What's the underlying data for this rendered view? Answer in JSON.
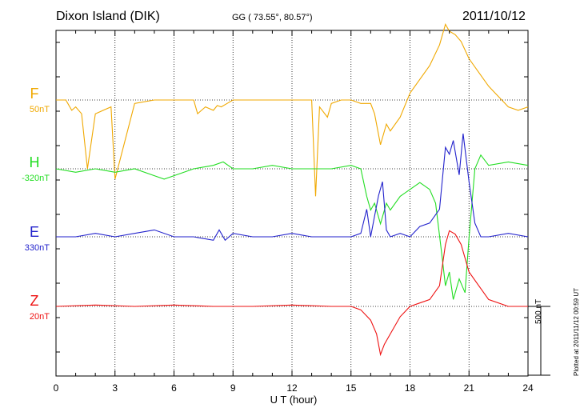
{
  "header": {
    "station": "Dixon Island (DIK)",
    "coords": "GG ( 73.55°,  80.57°)",
    "date": "2011/10/12"
  },
  "footer": {
    "plotted_note": "Plotted at 2011/11/12 00:59 UT"
  },
  "chart_data": {
    "type": "line",
    "title": "",
    "xlabel": "U T (hour)",
    "ylabel": "",
    "xlim": [
      0,
      24
    ],
    "x_ticks": [
      "0",
      "3",
      "6",
      "9",
      "12",
      "15",
      "18",
      "21",
      "24"
    ],
    "grid": true,
    "scale_bar": {
      "label": "500 nT",
      "value_nT": 500
    },
    "series": [
      {
        "name": "F",
        "baseline_label": "50nT",
        "color": "#f0a800",
        "x": [
          0,
          0.5,
          0.8,
          1,
          1.3,
          1.6,
          2,
          2.8,
          3,
          4,
          5,
          6,
          7,
          7.2,
          7.6,
          8,
          8.2,
          8.4,
          8.7,
          9,
          10,
          11,
          12,
          13,
          13.2,
          13.4,
          13.8,
          14,
          14.5,
          15,
          15.5,
          16,
          16.2,
          16.5,
          16.8,
          17,
          17.5,
          18,
          18.5,
          19,
          19.5,
          19.8,
          20,
          20.3,
          20.6,
          21,
          21.5,
          22,
          22.5,
          23,
          23.5,
          24
        ],
        "y": [
          0,
          0,
          -15,
          -10,
          -20,
          -100,
          -20,
          -10,
          -115,
          -5,
          0,
          0,
          0,
          -20,
          -10,
          -15,
          -8,
          -10,
          -5,
          0,
          0,
          0,
          0,
          0,
          -140,
          -10,
          -25,
          -5,
          0,
          0,
          -5,
          -5,
          -20,
          -65,
          -35,
          -45,
          -25,
          10,
          30,
          50,
          80,
          110,
          100,
          95,
          85,
          60,
          40,
          20,
          5,
          -10,
          -15,
          -10
        ]
      },
      {
        "name": "H",
        "baseline_label": "-320nT",
        "color": "#22dd22",
        "x": [
          0,
          1,
          2,
          3,
          4,
          5,
          5.5,
          6,
          7,
          8,
          8.5,
          9,
          10,
          11,
          12,
          13,
          14,
          15,
          15.5,
          15.8,
          16,
          16.2,
          16.5,
          16.8,
          17,
          17.5,
          18,
          18.5,
          19,
          19.3,
          19.6,
          19.8,
          20,
          20.2,
          20.5,
          20.8,
          21,
          21.3,
          21.6,
          22,
          23,
          24
        ],
        "y": [
          0,
          -5,
          0,
          -5,
          0,
          -10,
          -15,
          -10,
          0,
          5,
          10,
          0,
          0,
          5,
          0,
          0,
          0,
          5,
          0,
          -40,
          -60,
          -50,
          -80,
          -50,
          -60,
          -40,
          -30,
          -20,
          -30,
          -50,
          -120,
          -170,
          -150,
          -190,
          -160,
          -180,
          -100,
          0,
          20,
          5,
          10,
          5
        ]
      },
      {
        "name": "E",
        "baseline_label": "330nT",
        "color": "#2222cc",
        "x": [
          0,
          1,
          2,
          3,
          4,
          5,
          6,
          7,
          8,
          8.3,
          8.6,
          9,
          10,
          11,
          12,
          13,
          14,
          15,
          15.5,
          15.8,
          16,
          16.2,
          16.4,
          16.6,
          16.8,
          17,
          17.5,
          18,
          18.5,
          19,
          19.5,
          19.8,
          20,
          20.2,
          20.5,
          20.7,
          21,
          21.3,
          21.6,
          22,
          23,
          24
        ],
        "y": [
          0,
          0,
          5,
          0,
          5,
          10,
          0,
          0,
          -5,
          10,
          -5,
          5,
          0,
          0,
          5,
          0,
          0,
          0,
          5,
          40,
          0,
          30,
          60,
          80,
          10,
          0,
          5,
          0,
          15,
          20,
          40,
          130,
          120,
          140,
          90,
          150,
          80,
          20,
          0,
          0,
          5,
          0
        ]
      },
      {
        "name": "Z",
        "baseline_label": "20nT",
        "color": "#ee1111",
        "x": [
          0,
          2,
          4,
          6,
          8,
          10,
          12,
          14,
          15,
          15.5,
          16,
          16.3,
          16.5,
          16.7,
          17,
          17.5,
          18,
          18.5,
          19,
          19.5,
          19.8,
          20,
          20.3,
          20.6,
          21,
          21.5,
          22,
          23,
          24
        ],
        "y": [
          0,
          2,
          0,
          2,
          0,
          0,
          2,
          0,
          0,
          -5,
          -20,
          -40,
          -70,
          -55,
          -40,
          -15,
          0,
          5,
          10,
          30,
          90,
          110,
          105,
          90,
          50,
          30,
          10,
          0,
          0
        ]
      }
    ]
  }
}
